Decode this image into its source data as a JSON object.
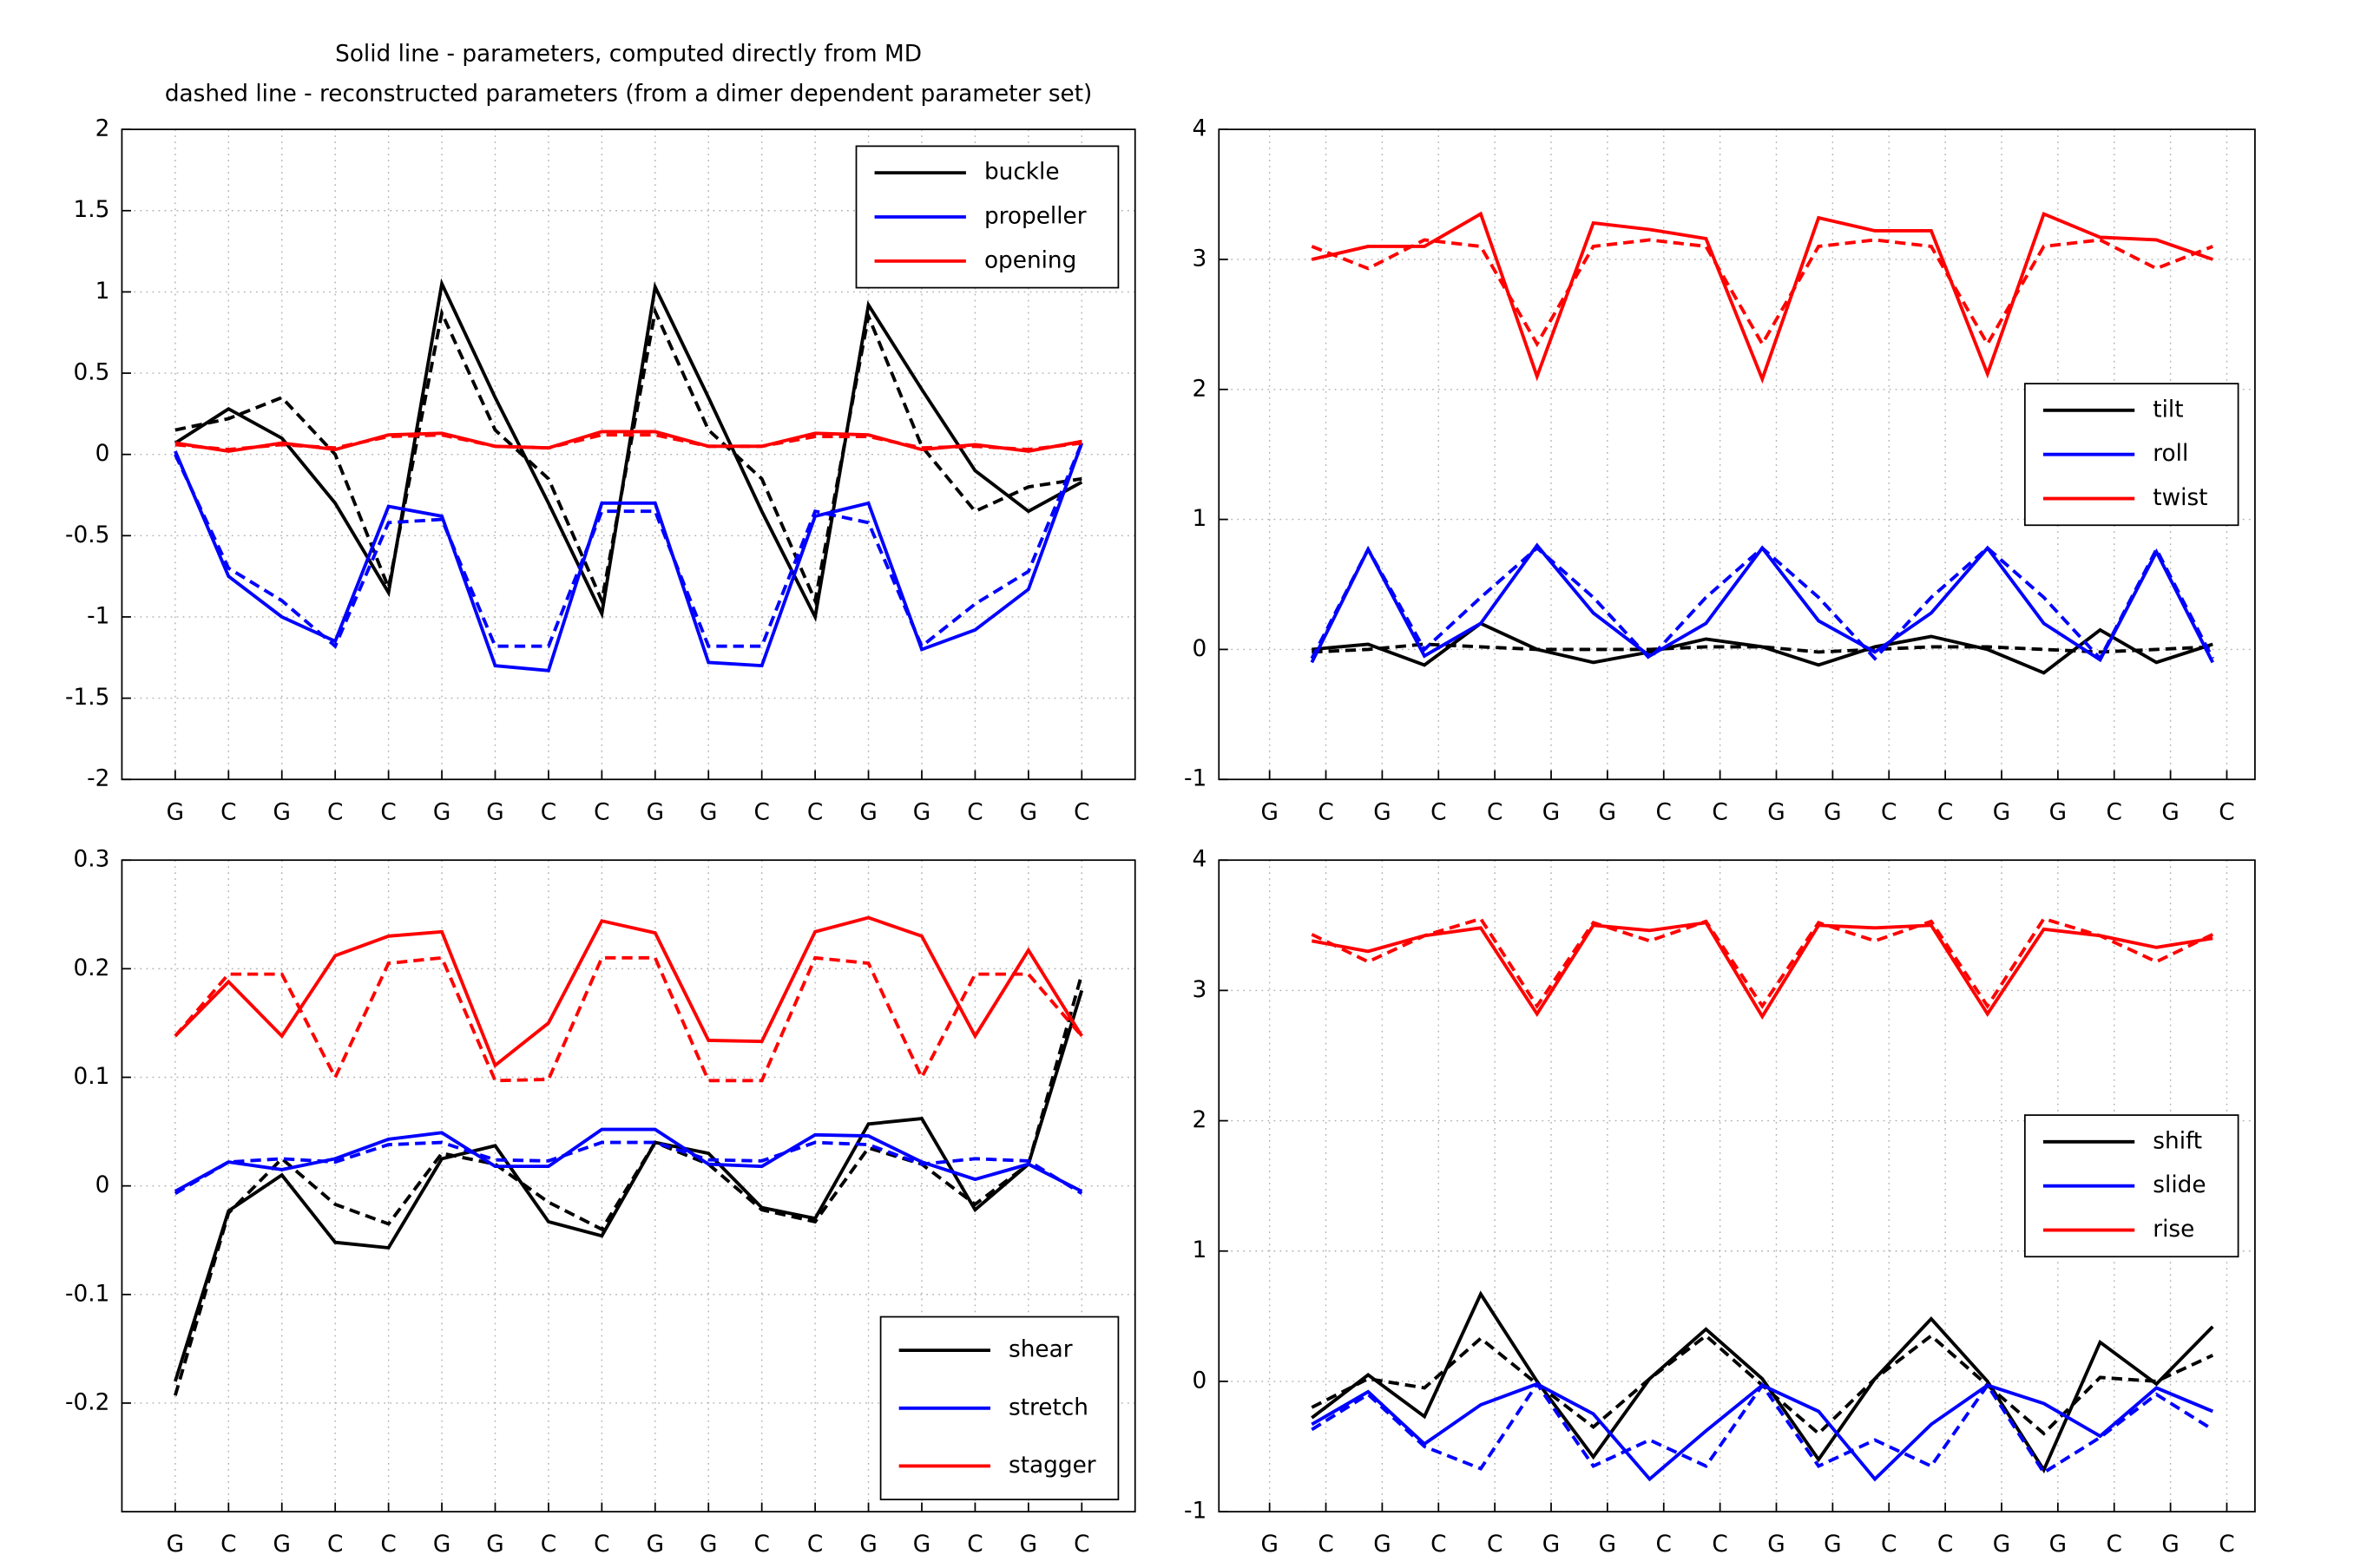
{
  "chart_data": [
    {
      "type": "line",
      "title": [
        "Solid line - parameters, computed directly from MD",
        "dashed line - reconstructed parameters (from a dimer dependent parameter set)"
      ],
      "xlim": [
        0,
        19
      ],
      "ylim": [
        -2,
        2
      ],
      "yticks": [
        -2,
        -1.5,
        -1,
        -0.5,
        0,
        0.5,
        1,
        1.5,
        2
      ],
      "xticks": [
        {
          "value": 1,
          "label": "G"
        },
        {
          "value": 2,
          "label": "C"
        },
        {
          "value": 3,
          "label": "G"
        },
        {
          "value": 4,
          "label": "C"
        },
        {
          "value": 5,
          "label": "C"
        },
        {
          "value": 6,
          "label": "G"
        },
        {
          "value": 7,
          "label": "G"
        },
        {
          "value": 8,
          "label": "C"
        },
        {
          "value": 9,
          "label": "C"
        },
        {
          "value": 10,
          "label": "G"
        },
        {
          "value": 11,
          "label": "G"
        },
        {
          "value": 12,
          "label": "C"
        },
        {
          "value": 13,
          "label": "C"
        },
        {
          "value": 14,
          "label": "G"
        },
        {
          "value": 15,
          "label": "G"
        },
        {
          "value": 16,
          "label": "C"
        },
        {
          "value": 17,
          "label": "G"
        },
        {
          "value": 18,
          "label": "C"
        }
      ],
      "x": [
        1,
        2,
        3,
        4,
        5,
        6,
        7,
        8,
        9,
        10,
        11,
        12,
        13,
        14,
        15,
        16,
        17,
        18
      ],
      "grid": true,
      "legend": "upper right",
      "series": [
        {
          "name": "buckle",
          "color": "#000000",
          "values": [
            0.07,
            0.28,
            0.1,
            -0.3,
            -0.85,
            1.05,
            0.35,
            -0.3,
            -0.98,
            1.03,
            0.35,
            -0.35,
            -1.0,
            0.92,
            0.4,
            -0.1,
            -0.35,
            -0.17
          ],
          "reconstructed_values": [
            0.15,
            0.22,
            0.35,
            0.0,
            -0.82,
            0.87,
            0.15,
            -0.15,
            -0.9,
            0.88,
            0.15,
            -0.15,
            -0.9,
            0.85,
            0.05,
            -0.35,
            -0.2,
            -0.15
          ]
        },
        {
          "name": "propeller",
          "color": "#0000ff",
          "values": [
            0.02,
            -0.75,
            -1.0,
            -1.15,
            -0.32,
            -0.38,
            -1.3,
            -1.33,
            -0.3,
            -0.3,
            -1.28,
            -1.3,
            -0.38,
            -0.3,
            -1.2,
            -1.08,
            -0.83,
            0.07
          ],
          "reconstructed_values": [
            0.0,
            -0.7,
            -0.9,
            -1.18,
            -0.42,
            -0.4,
            -1.18,
            -1.18,
            -0.35,
            -0.35,
            -1.18,
            -1.18,
            -0.35,
            -0.42,
            -1.18,
            -0.92,
            -0.72,
            0.07
          ]
        },
        {
          "name": "opening",
          "color": "#ff0000",
          "values": [
            0.07,
            0.02,
            0.07,
            0.03,
            0.12,
            0.13,
            0.05,
            0.04,
            0.14,
            0.14,
            0.05,
            0.05,
            0.13,
            0.12,
            0.03,
            0.06,
            0.02,
            0.08
          ],
          "reconstructed_values": [
            0.06,
            0.03,
            0.06,
            0.04,
            0.11,
            0.12,
            0.05,
            0.04,
            0.12,
            0.12,
            0.05,
            0.05,
            0.11,
            0.11,
            0.04,
            0.05,
            0.03,
            0.07
          ]
        }
      ]
    },
    {
      "type": "line",
      "xlim": [
        0.1,
        18.5
      ],
      "ylim": [
        -1,
        4
      ],
      "yticks": [
        -1,
        0,
        1,
        2,
        3,
        4
      ],
      "xticks": [
        {
          "value": 1,
          "label": "G"
        },
        {
          "value": 2,
          "label": "C"
        },
        {
          "value": 3,
          "label": "G"
        },
        {
          "value": 4,
          "label": "C"
        },
        {
          "value": 5,
          "label": "C"
        },
        {
          "value": 6,
          "label": "G"
        },
        {
          "value": 7,
          "label": "G"
        },
        {
          "value": 8,
          "label": "C"
        },
        {
          "value": 9,
          "label": "C"
        },
        {
          "value": 10,
          "label": "G"
        },
        {
          "value": 11,
          "label": "G"
        },
        {
          "value": 12,
          "label": "C"
        },
        {
          "value": 13,
          "label": "C"
        },
        {
          "value": 14,
          "label": "G"
        },
        {
          "value": 15,
          "label": "G"
        },
        {
          "value": 16,
          "label": "C"
        },
        {
          "value": 17,
          "label": "G"
        },
        {
          "value": 18,
          "label": "C"
        }
      ],
      "x": [
        1.75,
        2.75,
        3.75,
        4.75,
        5.75,
        6.75,
        7.75,
        8.75,
        9.75,
        10.75,
        11.75,
        12.75,
        13.75,
        14.75,
        15.75,
        16.75,
        17.75
      ],
      "grid": true,
      "legend": "right",
      "series": [
        {
          "name": "tilt",
          "color": "#000000",
          "values": [
            0.0,
            0.04,
            -0.12,
            0.2,
            0.0,
            -0.1,
            -0.02,
            0.08,
            0.02,
            -0.12,
            0.02,
            0.1,
            0.0,
            -0.18,
            0.15,
            -0.1,
            0.04
          ],
          "reconstructed_values": [
            -0.02,
            0.0,
            0.04,
            0.02,
            0.0,
            0.0,
            0.0,
            0.02,
            0.02,
            -0.02,
            0.0,
            0.02,
            0.02,
            0.0,
            -0.02,
            0.0,
            0.02
          ]
        },
        {
          "name": "roll",
          "color": "#0000ff",
          "values": [
            -0.1,
            0.77,
            -0.05,
            0.2,
            0.8,
            0.28,
            -0.05,
            0.2,
            0.78,
            0.22,
            -0.02,
            0.28,
            0.78,
            0.2,
            -0.08,
            0.75,
            -0.1
          ],
          "reconstructed_values": [
            -0.07,
            0.77,
            0.0,
            0.4,
            0.78,
            0.4,
            -0.07,
            0.4,
            0.78,
            0.4,
            -0.07,
            0.4,
            0.78,
            0.4,
            -0.07,
            0.77,
            -0.07
          ]
        },
        {
          "name": "twist",
          "color": "#ff0000",
          "values": [
            3.0,
            3.1,
            3.1,
            3.35,
            2.1,
            3.28,
            3.23,
            3.16,
            2.08,
            3.32,
            3.22,
            3.22,
            2.12,
            3.35,
            3.17,
            3.15,
            3.0
          ],
          "reconstructed_values": [
            3.1,
            2.93,
            3.15,
            3.1,
            2.35,
            3.1,
            3.15,
            3.1,
            2.35,
            3.1,
            3.15,
            3.1,
            2.35,
            3.1,
            3.15,
            2.93,
            3.1
          ]
        }
      ]
    },
    {
      "type": "line",
      "xlim": [
        0,
        19
      ],
      "ylim": [
        -0.3,
        0.3
      ],
      "yticks": [
        -0.2,
        -0.1,
        0,
        0.1,
        0.2,
        0.3
      ],
      "xticks": [
        {
          "value": 1,
          "label": "G"
        },
        {
          "value": 2,
          "label": "C"
        },
        {
          "value": 3,
          "label": "G"
        },
        {
          "value": 4,
          "label": "C"
        },
        {
          "value": 5,
          "label": "C"
        },
        {
          "value": 6,
          "label": "G"
        },
        {
          "value": 7,
          "label": "G"
        },
        {
          "value": 8,
          "label": "C"
        },
        {
          "value": 9,
          "label": "C"
        },
        {
          "value": 10,
          "label": "G"
        },
        {
          "value": 11,
          "label": "G"
        },
        {
          "value": 12,
          "label": "C"
        },
        {
          "value": 13,
          "label": "C"
        },
        {
          "value": 14,
          "label": "G"
        },
        {
          "value": 15,
          "label": "G"
        },
        {
          "value": 16,
          "label": "C"
        },
        {
          "value": 17,
          "label": "G"
        },
        {
          "value": 18,
          "label": "C"
        }
      ],
      "x": [
        1,
        2,
        3,
        4,
        5,
        6,
        7,
        8,
        9,
        10,
        11,
        12,
        13,
        14,
        15,
        16,
        17,
        18
      ],
      "grid": true,
      "legend": "lower right",
      "series": [
        {
          "name": "shear",
          "color": "#000000",
          "values": [
            -0.18,
            -0.023,
            0.01,
            -0.052,
            -0.057,
            0.025,
            0.037,
            -0.033,
            -0.046,
            0.04,
            0.03,
            -0.02,
            -0.03,
            0.057,
            0.062,
            -0.022,
            0.02,
            0.18
          ],
          "reconstructed_values": [
            -0.193,
            -0.025,
            0.025,
            -0.017,
            -0.035,
            0.03,
            0.02,
            -0.015,
            -0.04,
            0.04,
            0.02,
            -0.022,
            -0.033,
            0.035,
            0.02,
            -0.017,
            0.02,
            0.195
          ]
        },
        {
          "name": "stretch",
          "color": "#0000ff",
          "values": [
            -0.005,
            0.022,
            0.015,
            0.025,
            0.043,
            0.049,
            0.018,
            0.018,
            0.052,
            0.052,
            0.02,
            0.018,
            0.047,
            0.046,
            0.022,
            0.006,
            0.02,
            -0.005
          ],
          "reconstructed_values": [
            -0.007,
            0.022,
            0.025,
            0.022,
            0.038,
            0.04,
            0.024,
            0.023,
            0.04,
            0.04,
            0.024,
            0.023,
            0.04,
            0.038,
            0.02,
            0.025,
            0.023,
            -0.007
          ]
        },
        {
          "name": "stagger",
          "color": "#ff0000",
          "values": [
            0.138,
            0.188,
            0.138,
            0.212,
            0.23,
            0.234,
            0.111,
            0.15,
            0.244,
            0.233,
            0.134,
            0.133,
            0.234,
            0.247,
            0.23,
            0.138,
            0.217,
            0.138
          ],
          "reconstructed_values": [
            0.138,
            0.195,
            0.195,
            0.1,
            0.205,
            0.21,
            0.097,
            0.098,
            0.21,
            0.21,
            0.097,
            0.097,
            0.21,
            0.205,
            0.1,
            0.195,
            0.195,
            0.138
          ]
        }
      ]
    },
    {
      "type": "line",
      "xlim": [
        0.1,
        18.5
      ],
      "ylim": [
        -1,
        4
      ],
      "yticks": [
        -1,
        0,
        1,
        2,
        3,
        4
      ],
      "xticks": [
        {
          "value": 1,
          "label": "G"
        },
        {
          "value": 2,
          "label": "C"
        },
        {
          "value": 3,
          "label": "G"
        },
        {
          "value": 4,
          "label": "C"
        },
        {
          "value": 5,
          "label": "C"
        },
        {
          "value": 6,
          "label": "G"
        },
        {
          "value": 7,
          "label": "G"
        },
        {
          "value": 8,
          "label": "C"
        },
        {
          "value": 9,
          "label": "C"
        },
        {
          "value": 10,
          "label": "G"
        },
        {
          "value": 11,
          "label": "G"
        },
        {
          "value": 12,
          "label": "C"
        },
        {
          "value": 13,
          "label": "C"
        },
        {
          "value": 14,
          "label": "G"
        },
        {
          "value": 15,
          "label": "G"
        },
        {
          "value": 16,
          "label": "C"
        },
        {
          "value": 17,
          "label": "G"
        },
        {
          "value": 18,
          "label": "C"
        }
      ],
      "x": [
        1.75,
        2.75,
        3.75,
        4.75,
        5.75,
        6.75,
        7.75,
        8.75,
        9.75,
        10.75,
        11.75,
        12.75,
        13.75,
        14.75,
        15.75,
        16.75,
        17.75
      ],
      "grid": true,
      "legend": "right",
      "series": [
        {
          "name": "shift",
          "color": "#000000",
          "values": [
            -0.28,
            0.05,
            -0.27,
            0.67,
            0.0,
            -0.58,
            0.02,
            0.4,
            0.02,
            -0.6,
            0.02,
            0.48,
            0.0,
            -0.68,
            0.3,
            -0.02,
            0.42
          ],
          "reconstructed_values": [
            -0.2,
            0.02,
            -0.05,
            0.33,
            -0.02,
            -0.35,
            0.02,
            0.35,
            -0.03,
            -0.4,
            0.02,
            0.35,
            -0.03,
            -0.4,
            0.03,
            0.0,
            0.2
          ]
        },
        {
          "name": "slide",
          "color": "#0000ff",
          "values": [
            -0.33,
            -0.08,
            -0.48,
            -0.18,
            -0.02,
            -0.25,
            -0.75,
            -0.38,
            -0.03,
            -0.23,
            -0.75,
            -0.33,
            -0.03,
            -0.17,
            -0.42,
            -0.05,
            -0.23
          ],
          "reconstructed_values": [
            -0.37,
            -0.1,
            -0.5,
            -0.67,
            -0.02,
            -0.65,
            -0.45,
            -0.65,
            -0.03,
            -0.65,
            -0.45,
            -0.65,
            -0.03,
            -0.7,
            -0.43,
            -0.1,
            -0.37
          ]
        },
        {
          "name": "rise",
          "color": "#ff0000",
          "values": [
            3.38,
            3.3,
            3.42,
            3.48,
            2.82,
            3.5,
            3.46,
            3.52,
            2.8,
            3.5,
            3.48,
            3.5,
            2.82,
            3.47,
            3.42,
            3.33,
            3.4
          ],
          "reconstructed_values": [
            3.43,
            3.22,
            3.42,
            3.55,
            2.88,
            3.52,
            3.38,
            3.53,
            2.88,
            3.52,
            3.38,
            3.53,
            2.88,
            3.55,
            3.42,
            3.22,
            3.43
          ]
        }
      ]
    }
  ]
}
